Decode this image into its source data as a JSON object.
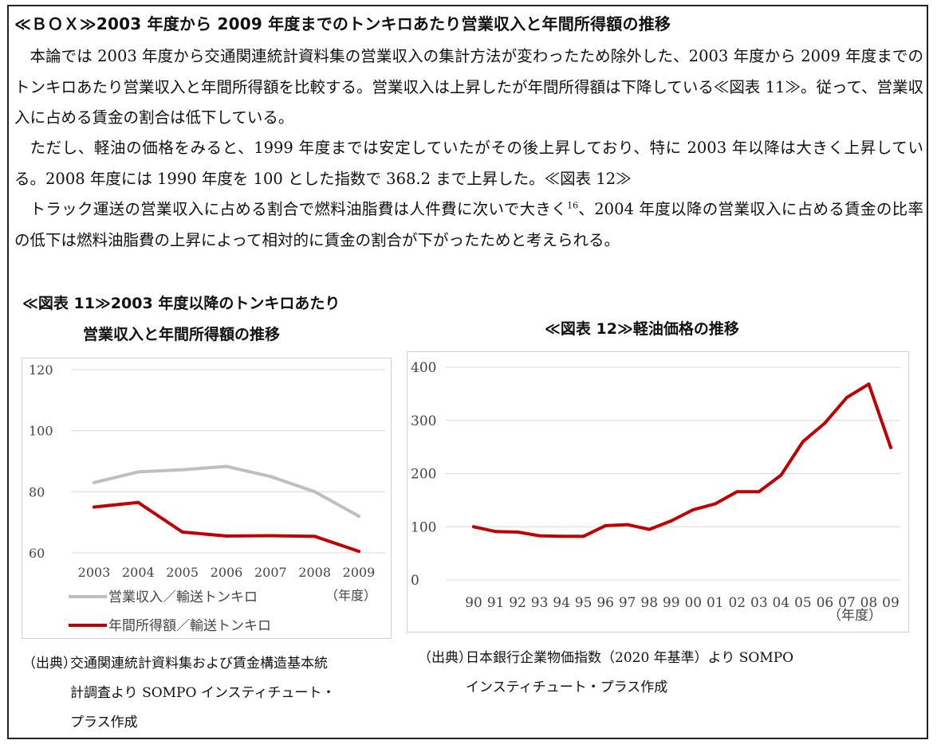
{
  "box_title": "≪ＢＯＸ≫2003 年度から 2009 年度までのトンキロあたり営業収入と年間所得額の推移",
  "paragraphs": [
    "本論では 2003 年度から交通関連統計資料集の営業収入の集計方法が変わったため除外した、2003 年度から 2009 年度までのトンキロあたり営業収入と年間所得額を比較する。営業収入は上昇したが年間所得額は下降している≪図表 11≫。従って、営業収入に占める賃金の割合は低下している。",
    "ただし、軽油の価格をみると、1999 年度までは安定していたがその後上昇しており、特に 2003 年以降は大きく上昇している。2008 年度には 1990 年度を 100 とした指数で 368.2 まで上昇した。≪図表 12≫",
    "トラック運送の営業収入に占める割合で燃料油脂費は人件費に次いで大きく",
    "、2004 年度以降の営業収入に占める賃金の比率の低下は燃料油脂費の上昇によって相対的に賃金の割合が下がったためと考えられる。"
  ],
  "footnote_ref": "16",
  "fig11": {
    "title_line1": "≪図表 11≫2003 年度以降のトンキロあたり",
    "title_line2": "営業収入と年間所得額の推移",
    "source_label": "（出典）",
    "source_line1": "交通関連統計資料集および賃金構造基本統",
    "source_line2": "計調査より SOMPO インスティチュート・",
    "source_line3": "プラス作成"
  },
  "fig12": {
    "title": "≪図表 12≫軽油価格の推移",
    "source_label": "（出典）",
    "source_line1": "日本銀行企業物価指数（2020 年基準）より SOMPO",
    "source_line2": "インスティチュート・プラス作成"
  },
  "chart_data": [
    {
      "type": "line",
      "title": "≪図表 11≫2003 年度以降のトンキロあたり 営業収入と年間所得額の推移",
      "categories": [
        "2003",
        "2004",
        "2005",
        "2006",
        "2007",
        "2008",
        "2009"
      ],
      "x_unit": "（年度）",
      "yticks": [
        "60",
        "80",
        "100",
        "120"
      ],
      "ylim": [
        60,
        120
      ],
      "grid": "horizontal",
      "legend_position": "bottom-left",
      "series": [
        {
          "name": "営業収入／輸送トンキロ",
          "color": "#bfbfbf",
          "values": [
            83.0,
            86.5,
            87.2,
            88.3,
            85.0,
            80.0,
            72.0
          ]
        },
        {
          "name": "年間所得額／輸送トンキロ",
          "color": "#c00000",
          "values": [
            75.0,
            76.5,
            66.8,
            65.5,
            65.6,
            65.4,
            60.5
          ]
        }
      ]
    },
    {
      "type": "line",
      "title": "≪図表 12≫軽油価格の推移",
      "categories": [
        "90",
        "91",
        "92",
        "93",
        "94",
        "95",
        "96",
        "97",
        "98",
        "99",
        "00",
        "01",
        "02",
        "03",
        "04",
        "05",
        "06",
        "07",
        "08",
        "09"
      ],
      "x_unit": "（年度）",
      "yticks": [
        "0",
        "100",
        "200",
        "300",
        "400"
      ],
      "ylim": [
        0,
        400
      ],
      "grid": "horizontal",
      "series": [
        {
          "color": "#c00000",
          "values": [
            100,
            91,
            90,
            83,
            82,
            82,
            102,
            104,
            95,
            111,
            132,
            143,
            166,
            166,
            197,
            260,
            295,
            343,
            368.2,
            249
          ]
        }
      ]
    }
  ]
}
